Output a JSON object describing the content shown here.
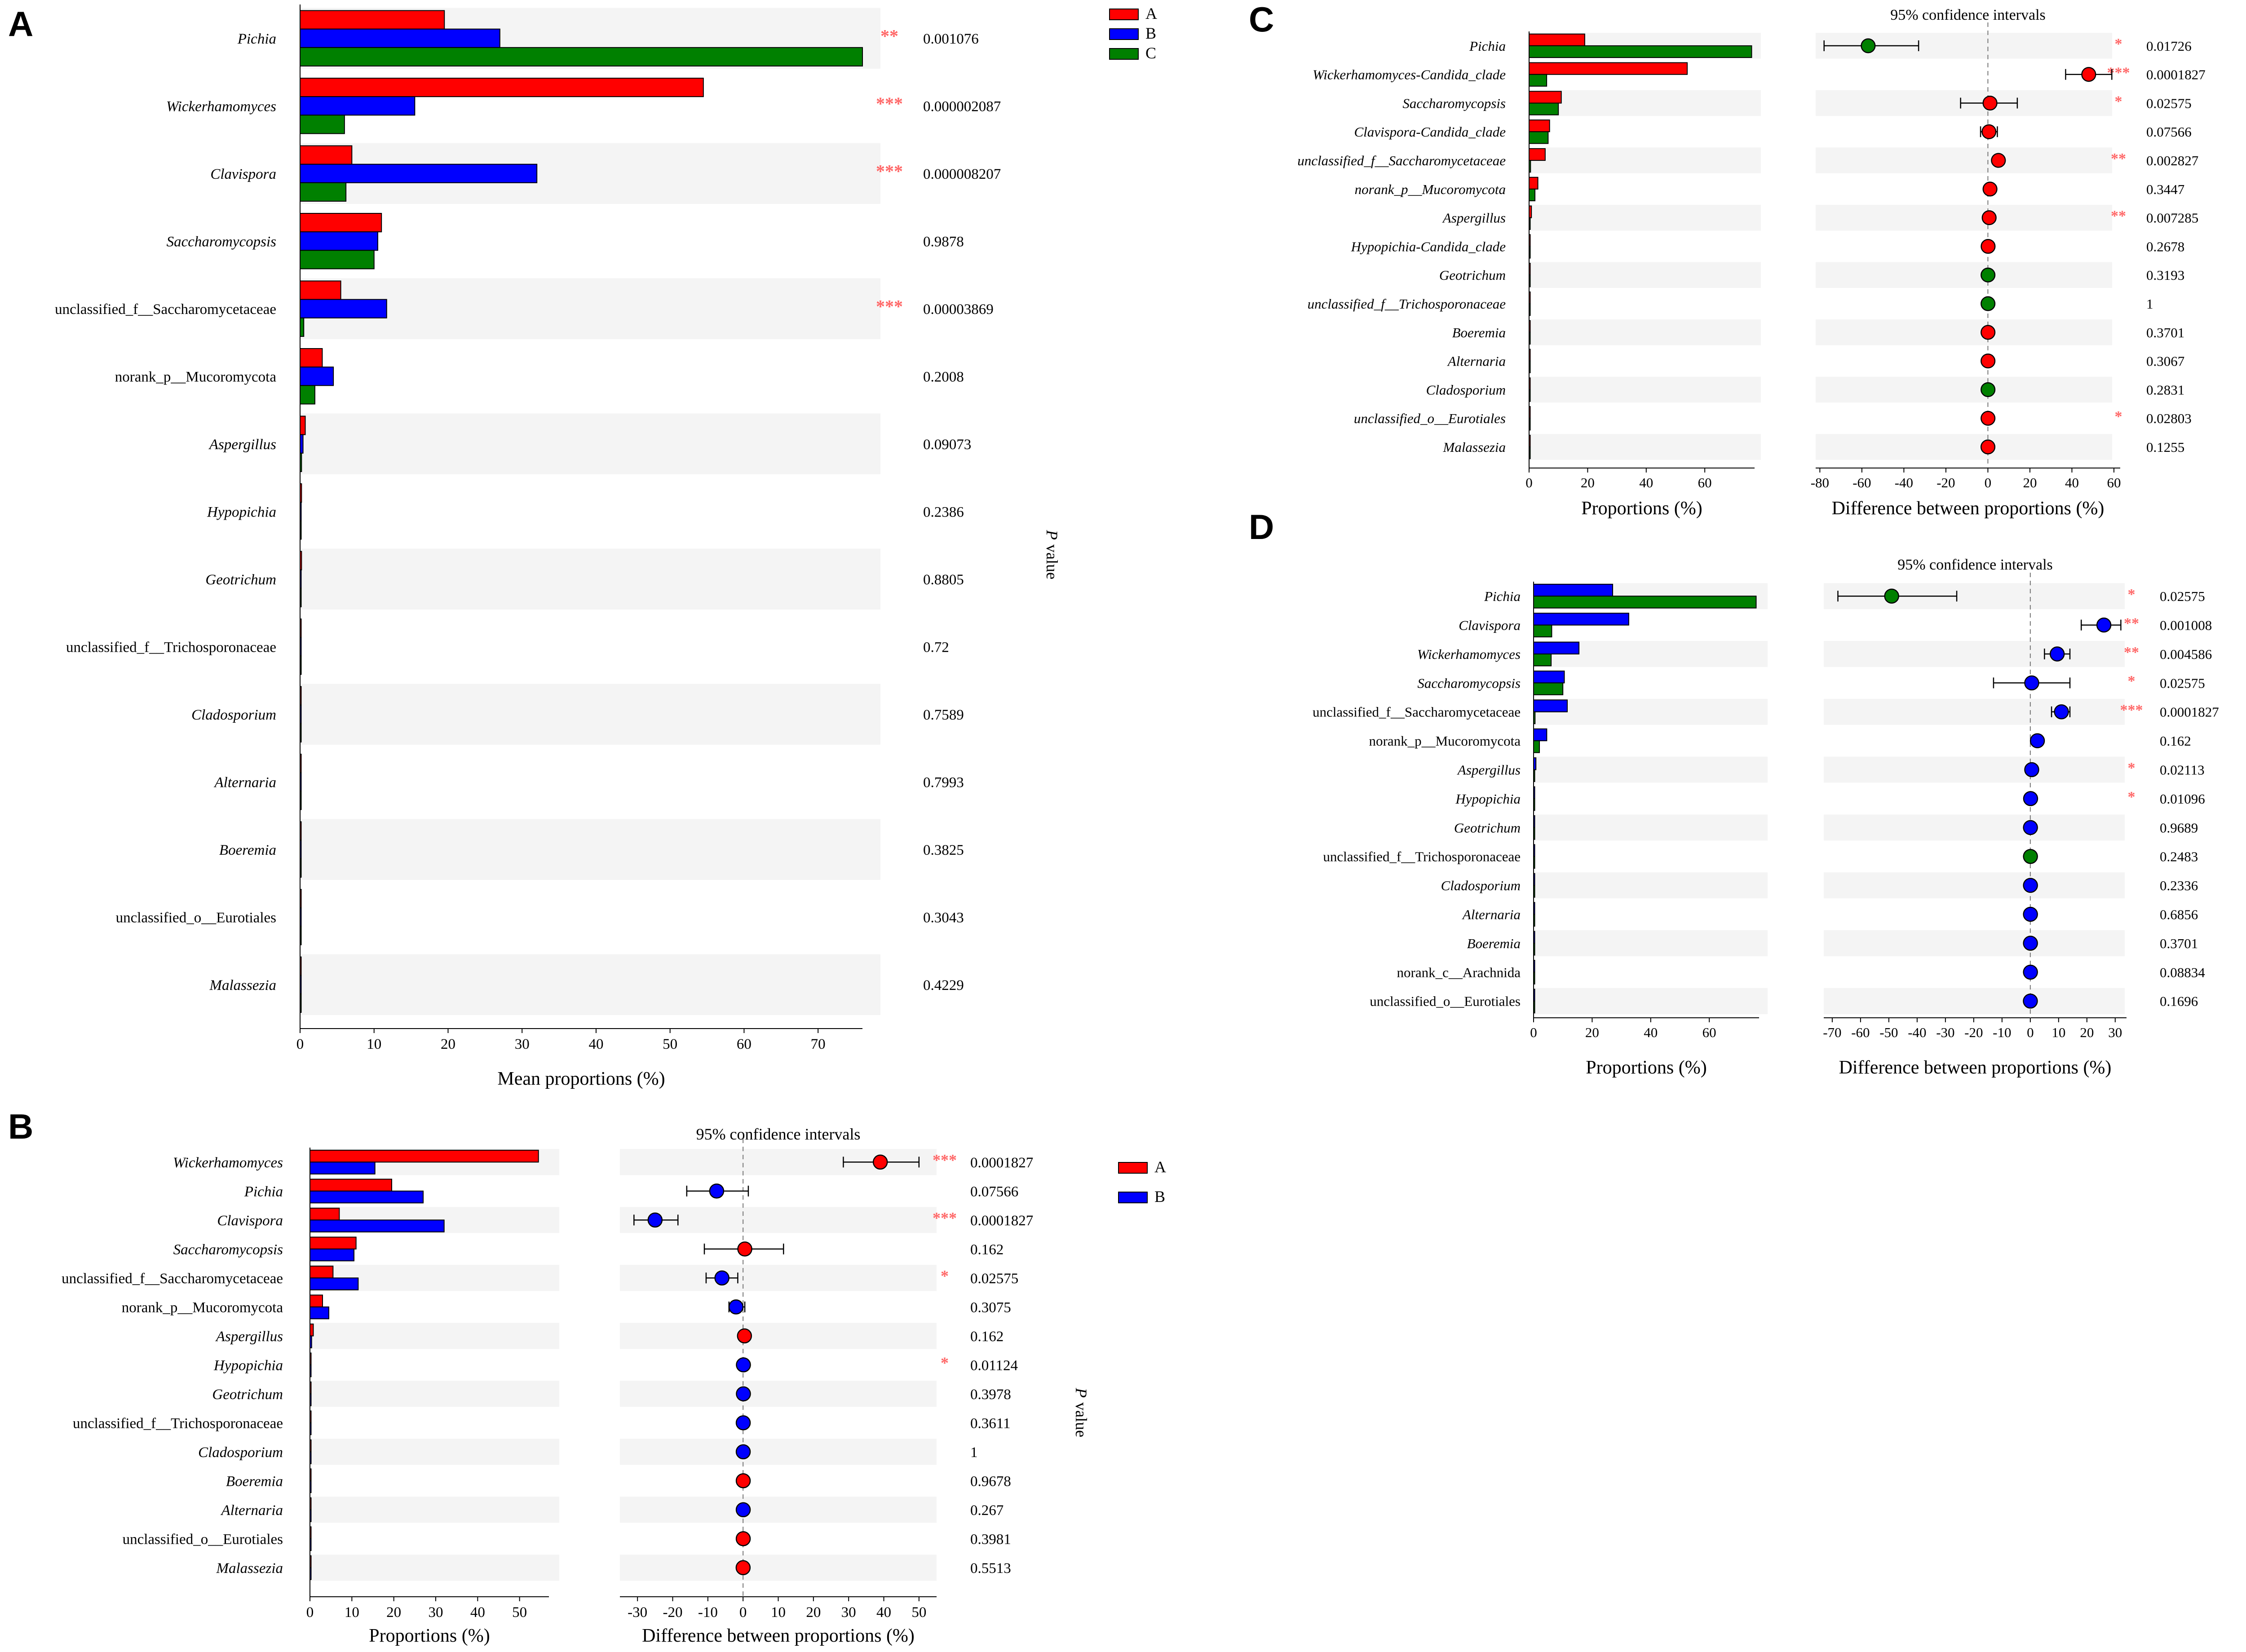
{
  "colors": {
    "A": "#ff0000",
    "B": "#0000ff",
    "C": "#008000",
    "star": "#ff6666",
    "stripe": "#f4f4f4"
  },
  "stars": {
    "1": "*",
    "2": "**",
    "3": "***"
  },
  "texts": {
    "pvalue_P": "P",
    "pvalue_value": "value",
    "ci_title": "95% confidence intervals",
    "mean_xlabel": "Mean proportions (%)",
    "prop_xlabel": "Proportions (%)",
    "diff_xlabel": "Difference between proportions (%)"
  },
  "chart_data": [
    {
      "panel": "A",
      "type": "bar",
      "xlabel": "Mean proportions (%)",
      "xlim": [
        0,
        76
      ],
      "xticks": [
        0,
        10,
        20,
        30,
        40,
        50,
        60,
        70
      ],
      "legend": [
        "A",
        "B",
        "C"
      ],
      "categories": [
        "Pichia",
        "Wickerhamomyces",
        "Clavispora",
        "Saccharomycopsis",
        "unclassified_f__Saccharomycetaceae",
        "norank_p__Mucoromycota",
        "Aspergillus",
        "Hypopichia",
        "Geotrichum",
        "unclassified_f__Trichosporonaceae",
        "Cladosporium",
        "Alternaria",
        "Boeremia",
        "unclassified_o__Eurotiales",
        "Malassezia"
      ],
      "italic": [
        true,
        true,
        true,
        true,
        false,
        false,
        true,
        true,
        true,
        false,
        true,
        true,
        true,
        false,
        true
      ],
      "series": [
        {
          "name": "A",
          "values": [
            19.5,
            54.5,
            7,
            11,
            5.5,
            3,
            0.7,
            0.2,
            0.2,
            0.1,
            0.1,
            0.1,
            0.1,
            0.1,
            0.05
          ]
        },
        {
          "name": "B",
          "values": [
            27,
            15.5,
            32,
            10.5,
            11.7,
            4.5,
            0.4,
            0.1,
            0.1,
            0.1,
            0.1,
            0.1,
            0.1,
            0.1,
            0.05
          ]
        },
        {
          "name": "C",
          "values": [
            76,
            6,
            6.2,
            10,
            0.5,
            2,
            0.2,
            0.1,
            0.1,
            0.1,
            0.1,
            0.1,
            0.1,
            0.05,
            0.05
          ]
        }
      ],
      "stars": [
        2,
        3,
        3,
        0,
        3,
        0,
        0,
        0,
        0,
        0,
        0,
        0,
        0,
        0,
        0
      ],
      "pvalues": [
        "0.001076",
        "0.000002087",
        "0.000008207",
        "0.9878",
        "0.00003869",
        "0.2008",
        "0.09073",
        "0.2386",
        "0.8805",
        "0.72",
        "0.7589",
        "0.7993",
        "0.3825",
        "0.3043",
        "0.4229"
      ]
    },
    {
      "panel": "B",
      "type": "bar",
      "xlabel": "Proportions (%)",
      "xlim": [
        0,
        57
      ],
      "xticks": [
        0,
        10,
        20,
        30,
        40,
        50
      ],
      "ci_xlabel": "Difference between proportions (%)",
      "ci_title": "95% confidence intervals",
      "ci_xlim": [
        -35,
        55
      ],
      "ci_xticks": [
        -30,
        -20,
        -10,
        0,
        10,
        20,
        30,
        40,
        50
      ],
      "legend": [
        "A",
        "B"
      ],
      "categories": [
        "Wickerhamomyces",
        "Pichia",
        "Clavispora",
        "Saccharomycopsis",
        "unclassified_f__Saccharomycetaceae",
        "norank_p__Mucoromycota",
        "Aspergillus",
        "Hypopichia",
        "Geotrichum",
        "unclassified_f__Trichosporonaceae",
        "Cladosporium",
        "Boeremia",
        "Alternaria",
        "unclassified_o__Eurotiales",
        "Malassezia"
      ],
      "italic": [
        true,
        true,
        true,
        true,
        false,
        false,
        true,
        true,
        true,
        false,
        true,
        true,
        true,
        false,
        true
      ],
      "series": [
        {
          "name": "A",
          "values": [
            54.5,
            19.5,
            7,
            11,
            5.5,
            3,
            0.8,
            0.2,
            0.2,
            0.1,
            0.1,
            0.1,
            0.1,
            0.1,
            0.05
          ]
        },
        {
          "name": "B",
          "values": [
            15.5,
            27,
            32,
            10.5,
            11.5,
            4.5,
            0.4,
            0.1,
            0.1,
            0.1,
            0.1,
            0.1,
            0.1,
            0.1,
            0.05
          ]
        }
      ],
      "ci": [
        {
          "diff": 39,
          "low": 28.5,
          "high": 50,
          "winner": "A"
        },
        {
          "diff": -7.5,
          "low": -16,
          "high": 1.5,
          "winner": "B"
        },
        {
          "diff": -25,
          "low": -31,
          "high": -18.5,
          "winner": "B"
        },
        {
          "diff": 0.5,
          "low": -11,
          "high": 11.5,
          "winner": "A"
        },
        {
          "diff": -6,
          "low": -10.5,
          "high": -1.5,
          "winner": "B"
        },
        {
          "diff": -2,
          "low": -4,
          "high": 0.5,
          "winner": "B"
        },
        {
          "diff": 0.4,
          "low": 0.1,
          "high": 0.7,
          "winner": "A"
        },
        {
          "diff": 0.1,
          "low": 0,
          "high": 0.2,
          "winner": "B"
        },
        {
          "diff": 0.1,
          "low": 0,
          "high": 0.2,
          "winner": "B"
        },
        {
          "diff": 0.05,
          "low": 0,
          "high": 0.1,
          "winner": "B"
        },
        {
          "diff": 0.05,
          "low": 0,
          "high": 0.1,
          "winner": "B"
        },
        {
          "diff": 0.05,
          "low": 0,
          "high": 0.1,
          "winner": "A"
        },
        {
          "diff": 0.05,
          "low": 0,
          "high": 0.1,
          "winner": "B"
        },
        {
          "diff": 0.05,
          "low": 0,
          "high": 0.1,
          "winner": "A"
        },
        {
          "diff": 0.02,
          "low": 0,
          "high": 0.05,
          "winner": "A"
        }
      ],
      "stars": [
        3,
        0,
        3,
        0,
        1,
        0,
        0,
        1,
        0,
        0,
        0,
        0,
        0,
        0,
        0
      ],
      "pvalues": [
        "0.0001827",
        "0.07566",
        "0.0001827",
        "0.162",
        "0.02575",
        "0.3075",
        "0.162",
        "0.01124",
        "0.3978",
        "0.3611",
        "1",
        "0.9678",
        "0.267",
        "0.3981",
        "0.5513"
      ]
    },
    {
      "panel": "C",
      "type": "bar",
      "xlabel": "Proportions (%)",
      "xlim": [
        0,
        77
      ],
      "xticks": [
        0,
        20,
        40,
        60
      ],
      "ci_xlabel": "Difference between proportions (%)",
      "ci_title": "95% confidence intervals",
      "ci_xlim": [
        -82,
        63
      ],
      "ci_xticks": [
        -80,
        -60,
        -40,
        -20,
        0,
        20,
        40,
        60
      ],
      "legend": [
        "A",
        "C"
      ],
      "categories": [
        "Pichia",
        "Wickerhamomyces-Candida_clade",
        "Saccharomycopsis",
        "Clavispora-Candida_clade",
        "unclassified_f__Saccharomycetaceae",
        "norank_p__Mucoromycota",
        "Aspergillus",
        "Hypopichia-Candida_clade",
        "Geotrichum",
        "unclassified_f__Trichosporonaceae",
        "Boeremia",
        "Alternaria",
        "Cladosporium",
        "unclassified_o__Eurotiales",
        "Malassezia"
      ],
      "italic": [
        true,
        true,
        true,
        true,
        true,
        true,
        true,
        true,
        true,
        true,
        true,
        true,
        true,
        true,
        true
      ],
      "series": [
        {
          "name": "A",
          "values": [
            19,
            54,
            11,
            7,
            5.5,
            3,
            0.8,
            0.2,
            0.1,
            0.1,
            0.1,
            0.1,
            0.1,
            0.1,
            0.05
          ]
        },
        {
          "name": "C",
          "values": [
            76,
            6,
            10,
            6.5,
            0.5,
            2,
            0.2,
            0.1,
            0.1,
            0.1,
            0.1,
            0.1,
            0.1,
            0.05,
            0.05
          ]
        }
      ],
      "ci": [
        {
          "diff": -57,
          "low": -78,
          "high": -33,
          "winner": "C"
        },
        {
          "diff": 48,
          "low": 37,
          "high": 59,
          "winner": "A"
        },
        {
          "diff": 1,
          "low": -13,
          "high": 14,
          "winner": "A"
        },
        {
          "diff": 0.5,
          "low": -3.5,
          "high": 4.5,
          "winner": "A"
        },
        {
          "diff": 5,
          "low": 3,
          "high": 7,
          "winner": "A"
        },
        {
          "diff": 1,
          "low": -1,
          "high": 2.5,
          "winner": "A"
        },
        {
          "diff": 0.6,
          "low": 0.2,
          "high": 1,
          "winner": "A"
        },
        {
          "diff": 0.1,
          "low": 0,
          "high": 0.2,
          "winner": "A"
        },
        {
          "diff": 0.05,
          "low": 0,
          "high": 0.1,
          "winner": "C"
        },
        {
          "diff": 0.05,
          "low": 0,
          "high": 0.1,
          "winner": "C"
        },
        {
          "diff": 0.05,
          "low": 0,
          "high": 0.1,
          "winner": "A"
        },
        {
          "diff": 0.05,
          "low": 0,
          "high": 0.1,
          "winner": "A"
        },
        {
          "diff": 0.05,
          "low": 0,
          "high": 0.1,
          "winner": "C"
        },
        {
          "diff": 0.05,
          "low": 0,
          "high": 0.1,
          "winner": "A"
        },
        {
          "diff": 0.02,
          "low": 0,
          "high": 0.05,
          "winner": "A"
        }
      ],
      "stars": [
        1,
        3,
        1,
        0,
        2,
        0,
        2,
        0,
        0,
        0,
        0,
        0,
        0,
        1,
        0
      ],
      "pvalues": [
        "0.01726",
        "0.0001827",
        "0.02575",
        "0.07566",
        "0.002827",
        "0.3447",
        "0.007285",
        "0.2678",
        "0.3193",
        "1",
        "0.3701",
        "0.3067",
        "0.2831",
        "0.02803",
        "0.1255"
      ]
    },
    {
      "panel": "D",
      "type": "bar",
      "xlabel": "Proportions (%)",
      "xlim": [
        0,
        77
      ],
      "xticks": [
        0,
        20,
        40,
        60
      ],
      "ci_xlabel": "Difference between proportions (%)",
      "ci_title": "95% confidence intervals",
      "ci_xlim": [
        -73,
        34
      ],
      "ci_xticks": [
        -70,
        -60,
        -50,
        -40,
        -30,
        -20,
        -10,
        0,
        10,
        20,
        30
      ],
      "legend": [
        "B",
        "C"
      ],
      "categories": [
        "Pichia",
        "Clavispora",
        "Wickerhamomyces",
        "Saccharomycopsis",
        "unclassified_f__Saccharomycetaceae",
        "norank_p__Mucoromycota",
        "Aspergillus",
        "Hypopichia",
        "Geotrichum",
        "unclassified_f__Trichosporonaceae",
        "Cladosporium",
        "Alternaria",
        "Boeremia",
        "norank_c__Arachnida",
        "unclassified_o__Eurotiales"
      ],
      "italic": [
        true,
        true,
        true,
        true,
        false,
        false,
        true,
        true,
        true,
        false,
        true,
        true,
        true,
        false,
        false
      ],
      "series": [
        {
          "name": "B",
          "values": [
            27,
            32.5,
            15.5,
            10.5,
            11.5,
            4.5,
            0.8,
            0.2,
            0.1,
            0.1,
            0.1,
            0.1,
            0.1,
            0.1,
            0.05
          ]
        },
        {
          "name": "C",
          "values": [
            76,
            6.2,
            6,
            10,
            0.5,
            2,
            0.3,
            0.1,
            0.1,
            0.1,
            0.1,
            0.1,
            0.1,
            0.05,
            0.05
          ]
        }
      ],
      "ci": [
        {
          "diff": -49,
          "low": -68,
          "high": -26,
          "winner": "C"
        },
        {
          "diff": 26,
          "low": 18,
          "high": 32,
          "winner": "B"
        },
        {
          "diff": 9.5,
          "low": 5,
          "high": 14,
          "winner": "B"
        },
        {
          "diff": 0.5,
          "low": -13,
          "high": 14,
          "winner": "B"
        },
        {
          "diff": 11,
          "low": 7.5,
          "high": 14,
          "winner": "B"
        },
        {
          "diff": 2.5,
          "low": 1,
          "high": 4,
          "winner": "B"
        },
        {
          "diff": 0.5,
          "low": 0.2,
          "high": 0.8,
          "winner": "B"
        },
        {
          "diff": 0.1,
          "low": 0,
          "high": 0.2,
          "winner": "B"
        },
        {
          "diff": 0.05,
          "low": 0,
          "high": 0.1,
          "winner": "B"
        },
        {
          "diff": 0.05,
          "low": 0,
          "high": 0.1,
          "winner": "C"
        },
        {
          "diff": 0.05,
          "low": 0,
          "high": 0.1,
          "winner": "B"
        },
        {
          "diff": 0.05,
          "low": 0,
          "high": 0.1,
          "winner": "B"
        },
        {
          "diff": 0.05,
          "low": 0,
          "high": 0.1,
          "winner": "B"
        },
        {
          "diff": 0.05,
          "low": 0,
          "high": 0.1,
          "winner": "B"
        },
        {
          "diff": 0.02,
          "low": 0,
          "high": 0.05,
          "winner": "B"
        }
      ],
      "stars": [
        1,
        2,
        2,
        1,
        3,
        0,
        1,
        1,
        0,
        0,
        0,
        0,
        0,
        0,
        0
      ],
      "pvalues": [
        "0.02575",
        "0.001008",
        "0.004586",
        "0.02575",
        "0.0001827",
        "0.162",
        "0.02113",
        "0.01096",
        "0.9689",
        "0.2483",
        "0.2336",
        "0.6856",
        "0.3701",
        "0.08834",
        "0.1696"
      ]
    }
  ]
}
